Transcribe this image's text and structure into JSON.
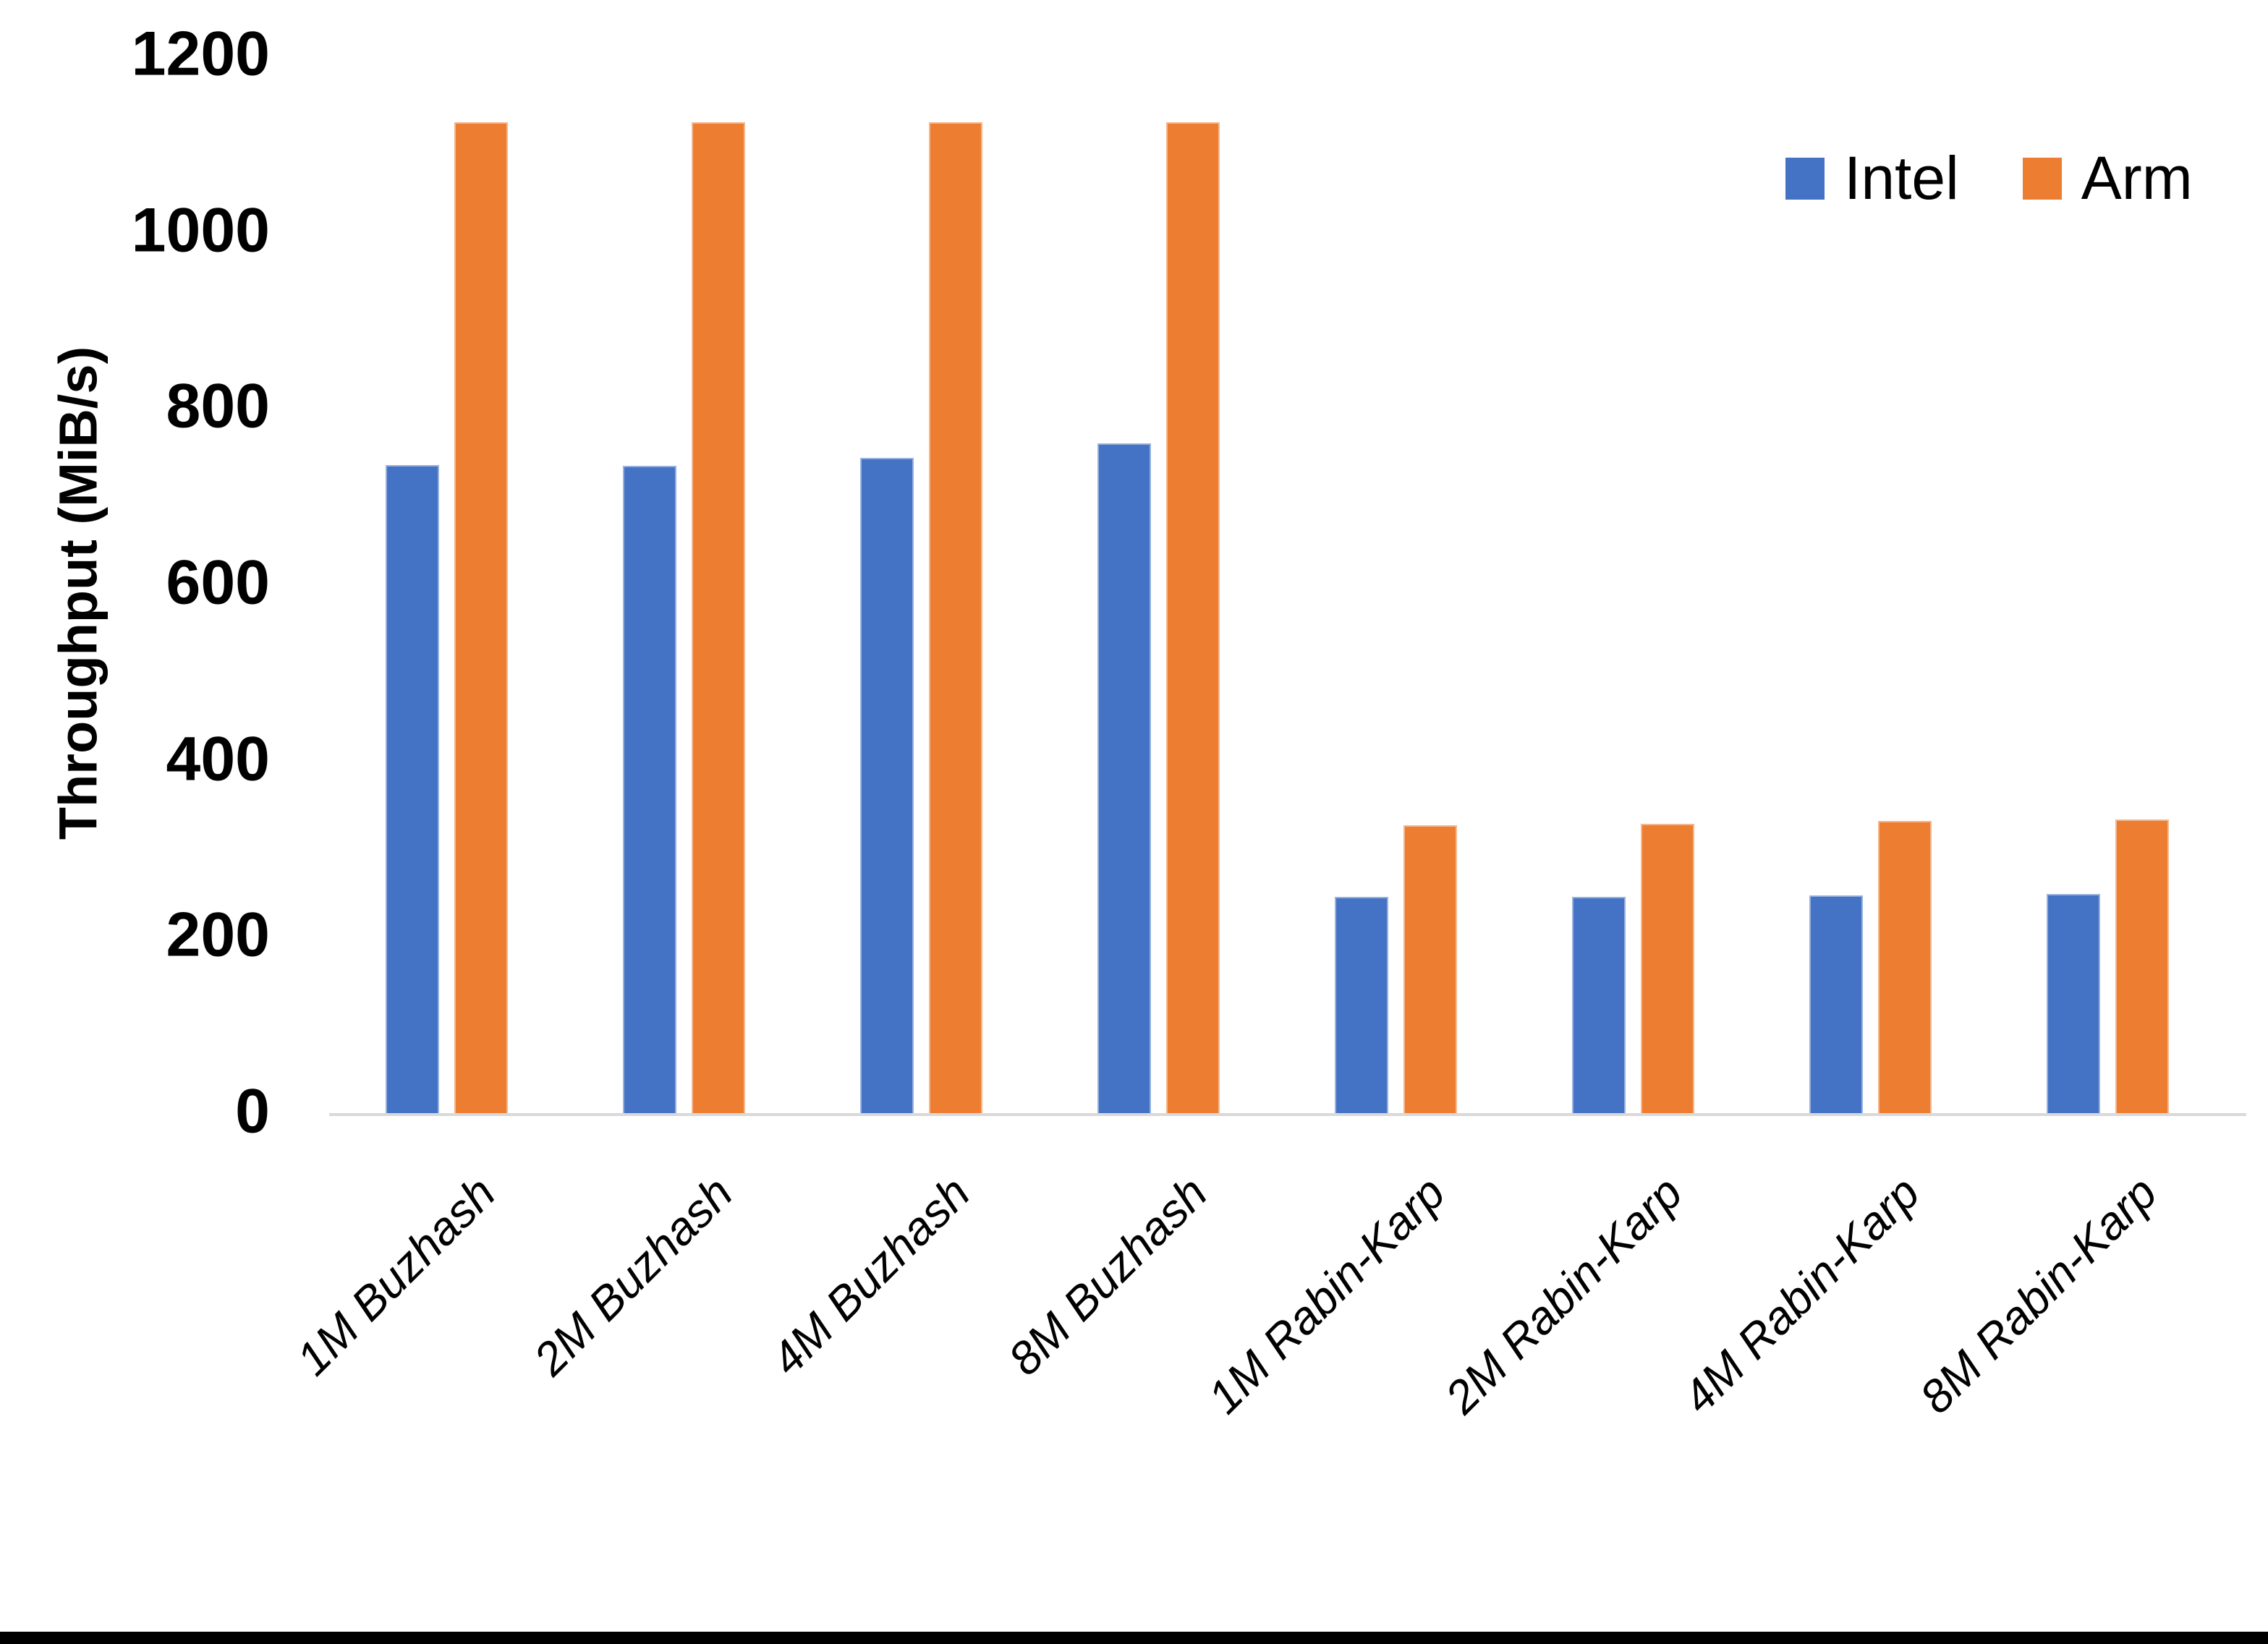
{
  "chart_data": {
    "type": "bar",
    "title": "",
    "xlabel": "",
    "ylabel": "Throughput (MiB/s)",
    "ylim": [
      0,
      1200
    ],
    "yticks": [
      0,
      200,
      400,
      600,
      800,
      1000,
      1200
    ],
    "grid": false,
    "legend_position": "top-right",
    "categories": [
      "1M Buzhash",
      "2M Buzhash",
      "4M Buzhash",
      "8M Buzhash",
      "1M Rabin-Karp",
      "2M Rabin-Karp",
      "4M Rabin-Karp",
      "8M Rabin-Karp"
    ],
    "series": [
      {
        "name": "Intel",
        "color": "#4472C4",
        "values": [
          737,
          736,
          745,
          762,
          247,
          247,
          249,
          250
        ]
      },
      {
        "name": "Arm",
        "color": "#ED7D31",
        "values": [
          1126,
          1126,
          1126,
          1126,
          328,
          330,
          333,
          335
        ]
      }
    ]
  }
}
